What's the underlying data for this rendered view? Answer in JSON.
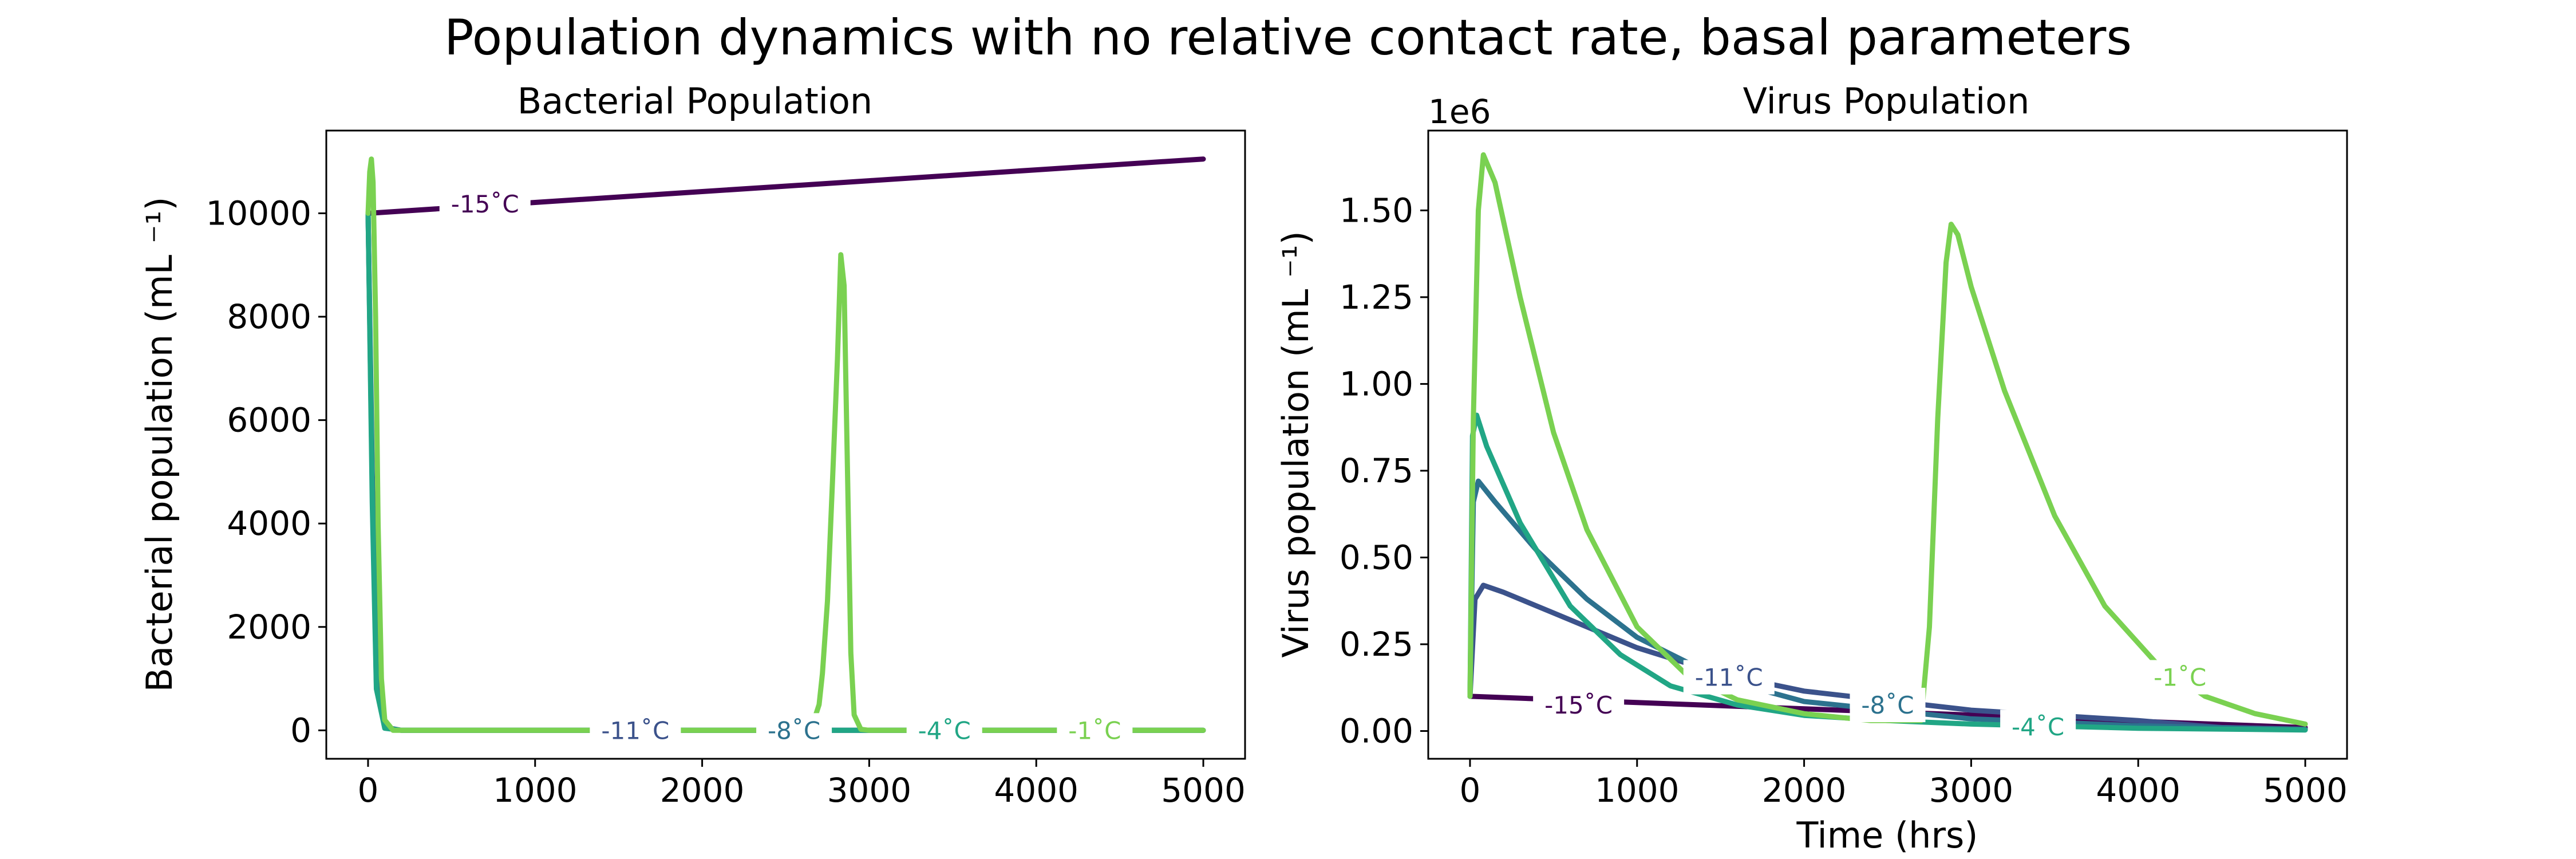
{
  "figure": {
    "title": "Population dynamics with no relative contact rate, basal parameters"
  },
  "colors": {
    "-15": "#440154",
    "-11": "#3b528b",
    "-8": "#2c728e",
    "-4": "#21a685",
    "-1": "#7ad151"
  },
  "chart_data": [
    {
      "type": "line",
      "title": "Bacterial Population",
      "xlabel": "",
      "ylabel": "Bacterial population (mL ⁻¹)",
      "xlim": [
        -250,
        5250
      ],
      "ylim": [
        -550,
        11600
      ],
      "xticks": [
        0,
        1000,
        2000,
        3000,
        4000,
        5000
      ],
      "yticks": [
        0,
        2000,
        4000,
        6000,
        8000,
        10000
      ],
      "series": [
        {
          "name": "-15˚C",
          "key": "-15",
          "x": [
            0,
            1000,
            2000,
            3000,
            4000,
            5000
          ],
          "y": [
            10000,
            10210,
            10420,
            10630,
            10840,
            11050
          ]
        },
        {
          "name": "-11˚C",
          "key": "-11",
          "x": [
            0,
            25,
            50,
            100,
            200,
            5000
          ],
          "y": [
            10000,
            5000,
            1000,
            60,
            0,
            0
          ]
        },
        {
          "name": "-8˚C",
          "key": "-8",
          "x": [
            0,
            25,
            50,
            100,
            200,
            5000
          ],
          "y": [
            10000,
            4700,
            900,
            50,
            0,
            0
          ]
        },
        {
          "name": "-4˚C",
          "key": "-4",
          "x": [
            0,
            25,
            50,
            100,
            200,
            5000
          ],
          "y": [
            10000,
            4400,
            800,
            40,
            0,
            0
          ]
        },
        {
          "name": "-1˚C",
          "key": "-1",
          "x": [
            0,
            10,
            20,
            30,
            45,
            60,
            80,
            100,
            150,
            2650,
            2700,
            2720,
            2750,
            2780,
            2810,
            2830,
            2850,
            2870,
            2890,
            2910,
            2950,
            3000,
            5000
          ],
          "y": [
            10000,
            10800,
            11050,
            10600,
            8000,
            4000,
            1000,
            200,
            0,
            0,
            500,
            1100,
            2500,
            4800,
            7200,
            9200,
            8600,
            5000,
            1500,
            300,
            20,
            0,
            0
          ]
        }
      ],
      "annotations": [
        {
          "text": "-15˚C",
          "key": "-15",
          "x": 700,
          "y": 10180
        },
        {
          "text": "-11˚C",
          "key": "-11",
          "x": 1600,
          "y": 0
        },
        {
          "text": "-8˚C",
          "key": "-8",
          "x": 2550,
          "y": 0
        },
        {
          "text": "-4˚C",
          "key": "-4",
          "x": 3450,
          "y": 0
        },
        {
          "text": "-1˚C",
          "key": "-1",
          "x": 4350,
          "y": 0
        }
      ]
    },
    {
      "type": "line",
      "title": "Virus Population",
      "xlabel": "Time (hrs)",
      "ylabel": "Virus population (mL ⁻¹)",
      "offset_text": "1e6",
      "xlim": [
        -250,
        5250
      ],
      "ylim": [
        -0.08,
        1.73
      ],
      "xticks": [
        0,
        1000,
        2000,
        3000,
        4000,
        5000
      ],
      "yticks": [
        0.0,
        0.25,
        0.5,
        0.75,
        1.0,
        1.25,
        1.5
      ],
      "ytick_labels": [
        "0.00",
        "0.25",
        "0.50",
        "0.75",
        "1.00",
        "1.25",
        "1.50"
      ],
      "series": [
        {
          "name": "-15˚C",
          "key": "-15",
          "x": [
            0,
            1000,
            2000,
            3000,
            4000,
            5000
          ],
          "y": [
            0.1,
            0.082,
            0.064,
            0.046,
            0.028,
            0.01
          ]
        },
        {
          "name": "-11˚C",
          "key": "-11",
          "x": [
            0,
            30,
            80,
            200,
            500,
            1000,
            1500,
            2000,
            3000,
            4000,
            4500,
            5000
          ],
          "y": [
            0.1,
            0.38,
            0.42,
            0.4,
            0.34,
            0.24,
            0.165,
            0.115,
            0.06,
            0.03,
            0.01,
            0.005
          ]
        },
        {
          "name": "-8˚C",
          "key": "-8",
          "x": [
            0,
            20,
            50,
            150,
            400,
            700,
            1000,
            1500,
            2000,
            3000,
            4000,
            5000
          ],
          "y": [
            0.1,
            0.66,
            0.72,
            0.66,
            0.52,
            0.38,
            0.27,
            0.15,
            0.085,
            0.035,
            0.015,
            0.005
          ]
        },
        {
          "name": "-4˚C",
          "key": "-4",
          "x": [
            0,
            15,
            40,
            100,
            300,
            600,
            900,
            1200,
            1600,
            2000,
            2500,
            3000,
            4000,
            5000
          ],
          "y": [
            0.1,
            0.85,
            0.91,
            0.82,
            0.6,
            0.36,
            0.22,
            0.13,
            0.075,
            0.045,
            0.03,
            0.02,
            0.008,
            0.003
          ]
        },
        {
          "name": "-1˚C",
          "key": "-1",
          "x": [
            0,
            20,
            50,
            80,
            150,
            300,
            500,
            700,
            1000,
            1300,
            1600,
            2000,
            2400,
            2700,
            2750,
            2800,
            2850,
            2880,
            2920,
            3000,
            3200,
            3500,
            3800,
            4100,
            4400,
            4700,
            5000
          ],
          "y": [
            0.1,
            0.9,
            1.5,
            1.66,
            1.58,
            1.25,
            0.86,
            0.58,
            0.3,
            0.16,
            0.09,
            0.05,
            0.03,
            0.03,
            0.3,
            0.9,
            1.35,
            1.46,
            1.43,
            1.28,
            0.98,
            0.62,
            0.36,
            0.2,
            0.1,
            0.05,
            0.02
          ]
        }
      ],
      "annotations": [
        {
          "text": "-15˚C",
          "key": "-15",
          "x": 650,
          "y": 0.075
        },
        {
          "text": "-11˚C",
          "key": "-11",
          "x": 1550,
          "y": 0.155
        },
        {
          "text": "-8˚C",
          "key": "-8",
          "x": 2500,
          "y": 0.075
        },
        {
          "text": "-4˚C",
          "key": "-4",
          "x": 3400,
          "y": 0.012
        },
        {
          "text": "-1˚C",
          "key": "-1",
          "x": 4250,
          "y": 0.155
        }
      ]
    }
  ]
}
